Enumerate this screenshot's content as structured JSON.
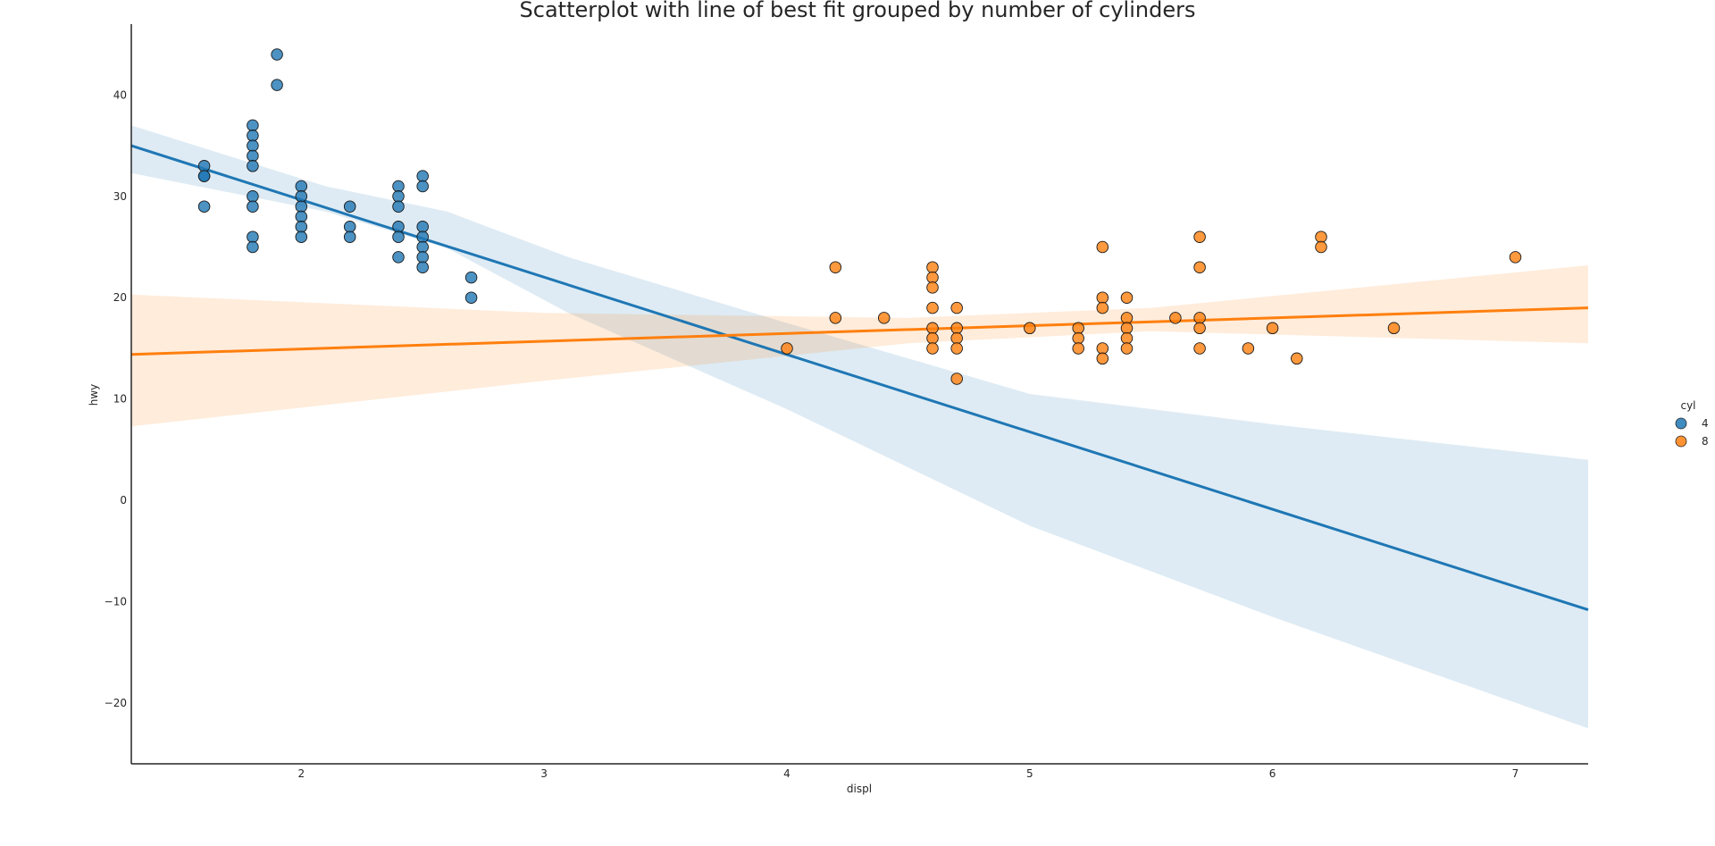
{
  "chart_data": {
    "type": "scatter",
    "title": "Scatterplot with line of best fit grouped by number of cylinders",
    "xlabel": "displ",
    "ylabel": "hwy",
    "xlim": [
      1.3,
      7.3
    ],
    "ylim": [
      -26,
      47
    ],
    "xticks": [
      2,
      3,
      4,
      5,
      6,
      7
    ],
    "yticks": [
      -20,
      -10,
      0,
      10,
      20,
      30,
      40
    ],
    "xtick_labels": [
      "2",
      "3",
      "4",
      "5",
      "6",
      "7"
    ],
    "ytick_labels": [
      "−20",
      "−10",
      "0",
      "10",
      "20",
      "30",
      "40"
    ],
    "grid": false,
    "legend": {
      "title": "cyl",
      "placement": "right"
    },
    "series": [
      {
        "name": "4",
        "color": "#1f77b4",
        "fit": {
          "x": [
            1.3,
            7.3
          ],
          "y": [
            35.0,
            -10.8
          ]
        },
        "band": {
          "x": [
            1.3,
            2.1,
            2.6,
            3.1,
            4.0,
            5.0,
            6.0,
            7.3
          ],
          "lower": [
            32.3,
            28.5,
            24.9,
            18.5,
            9.0,
            -2.5,
            -11.5,
            -22.5
          ],
          "upper": [
            37.0,
            31.0,
            28.5,
            24.0,
            17.5,
            10.5,
            7.5,
            4.0
          ]
        },
        "points": [
          [
            1.6,
            33
          ],
          [
            1.6,
            32
          ],
          [
            1.6,
            32
          ],
          [
            1.6,
            29
          ],
          [
            1.8,
            37
          ],
          [
            1.8,
            36
          ],
          [
            1.8,
            35
          ],
          [
            1.8,
            34
          ],
          [
            1.8,
            33
          ],
          [
            1.8,
            30
          ],
          [
            1.8,
            29
          ],
          [
            1.8,
            26
          ],
          [
            1.8,
            25
          ],
          [
            1.9,
            44
          ],
          [
            1.9,
            41
          ],
          [
            2.0,
            31
          ],
          [
            2.0,
            30
          ],
          [
            2.0,
            29
          ],
          [
            2.0,
            28
          ],
          [
            2.0,
            27
          ],
          [
            2.0,
            26
          ],
          [
            2.2,
            29
          ],
          [
            2.2,
            27
          ],
          [
            2.2,
            26
          ],
          [
            2.4,
            31
          ],
          [
            2.4,
            30
          ],
          [
            2.4,
            29
          ],
          [
            2.4,
            27
          ],
          [
            2.4,
            26
          ],
          [
            2.4,
            24
          ],
          [
            2.5,
            32
          ],
          [
            2.5,
            31
          ],
          [
            2.5,
            27
          ],
          [
            2.5,
            26
          ],
          [
            2.5,
            25
          ],
          [
            2.5,
            24
          ],
          [
            2.5,
            23
          ],
          [
            2.7,
            22
          ],
          [
            2.7,
            20
          ]
        ]
      },
      {
        "name": "8",
        "color": "#ff7f0e",
        "fit": {
          "x": [
            1.3,
            7.3
          ],
          "y": [
            14.4,
            19.0
          ]
        },
        "band": {
          "x": [
            1.3,
            3.0,
            4.5,
            5.5,
            7.3
          ],
          "lower": [
            7.3,
            11.8,
            15.5,
            16.7,
            15.5
          ],
          "upper": [
            20.3,
            18.5,
            18.0,
            19.0,
            23.2
          ]
        },
        "points": [
          [
            4.0,
            15
          ],
          [
            4.2,
            23
          ],
          [
            4.2,
            18
          ],
          [
            4.4,
            18
          ],
          [
            4.6,
            23
          ],
          [
            4.6,
            22
          ],
          [
            4.6,
            21
          ],
          [
            4.6,
            19
          ],
          [
            4.6,
            17
          ],
          [
            4.6,
            16
          ],
          [
            4.6,
            15
          ],
          [
            4.7,
            19
          ],
          [
            4.7,
            17
          ],
          [
            4.7,
            16
          ],
          [
            4.7,
            15
          ],
          [
            4.7,
            12
          ],
          [
            5.0,
            17
          ],
          [
            5.2,
            17
          ],
          [
            5.2,
            16
          ],
          [
            5.2,
            15
          ],
          [
            5.3,
            25
          ],
          [
            5.3,
            20
          ],
          [
            5.3,
            19
          ],
          [
            5.3,
            15
          ],
          [
            5.3,
            14
          ],
          [
            5.4,
            20
          ],
          [
            5.4,
            18
          ],
          [
            5.4,
            17
          ],
          [
            5.4,
            16
          ],
          [
            5.4,
            15
          ],
          [
            5.6,
            18
          ],
          [
            5.7,
            26
          ],
          [
            5.7,
            23
          ],
          [
            5.7,
            18
          ],
          [
            5.7,
            17
          ],
          [
            5.7,
            15
          ],
          [
            5.9,
            15
          ],
          [
            6.0,
            17
          ],
          [
            6.1,
            14
          ],
          [
            6.2,
            26
          ],
          [
            6.2,
            25
          ],
          [
            6.5,
            17
          ],
          [
            7.0,
            24
          ]
        ]
      }
    ]
  }
}
